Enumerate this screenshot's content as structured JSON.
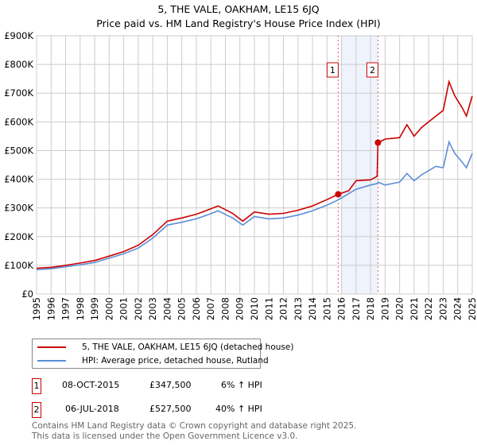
{
  "chart_data": {
    "type": "line",
    "title": "5, THE VALE, OAKHAM, LE15 6JQ",
    "subtitle": "Price paid vs. HM Land Registry's House Price Index (HPI)",
    "xlim": [
      1995,
      2025
    ],
    "ylim": [
      0,
      900000
    ],
    "grid": true,
    "y_ticks": [
      {
        "v": 0,
        "label": "£0"
      },
      {
        "v": 100000,
        "label": "£100K"
      },
      {
        "v": 200000,
        "label": "£200K"
      },
      {
        "v": 300000,
        "label": "£300K"
      },
      {
        "v": 400000,
        "label": "£400K"
      },
      {
        "v": 500000,
        "label": "£500K"
      },
      {
        "v": 600000,
        "label": "£600K"
      },
      {
        "v": 700000,
        "label": "£700K"
      },
      {
        "v": 800000,
        "label": "£800K"
      },
      {
        "v": 900000,
        "label": "£900K"
      }
    ],
    "x_ticks": [
      "1995",
      "1996",
      "1997",
      "1998",
      "1999",
      "2000",
      "2001",
      "2002",
      "2003",
      "2004",
      "2005",
      "2006",
      "2007",
      "2008",
      "2009",
      "2010",
      "2011",
      "2012",
      "2013",
      "2014",
      "2015",
      "2016",
      "2017",
      "2018",
      "2019",
      "2020",
      "2021",
      "2022",
      "2023",
      "2024",
      "2025"
    ],
    "series": [
      {
        "name": "5, THE VALE, OAKHAM, LE15 6JQ (detached house)",
        "color": "#cc0000",
        "x": [
          1995,
          1996,
          1997,
          1998,
          1999,
          2000,
          2001,
          2002,
          2003,
          2004,
          2005,
          2006,
          2007,
          2007.5,
          2008.5,
          2009.2,
          2010,
          2011,
          2012,
          2013,
          2014,
          2015,
          2015.77,
          2016.5,
          2017,
          2018,
          2018.45,
          2018.51,
          2019,
          2020,
          2020.5,
          2021,
          2021.5,
          2022,
          2022.5,
          2023,
          2023.4,
          2023.8,
          2024.3,
          2024.6,
          2025
        ],
        "y": [
          90000,
          93000,
          100000,
          108000,
          117000,
          132000,
          148000,
          170000,
          207000,
          254000,
          265000,
          278000,
          297000,
          307000,
          281000,
          254000,
          286000,
          278000,
          281000,
          292000,
          307000,
          329000,
          347500,
          360000,
          395000,
          398000,
          410000,
          527500,
          540000,
          545000,
          590000,
          550000,
          580000,
          600000,
          620000,
          640000,
          740000,
          690000,
          650000,
          620000,
          690000
        ]
      },
      {
        "name": "HPI: Average price, detached house, Rutland",
        "color": "#5b8fd6",
        "x": [
          1995,
          1996,
          1997,
          1998,
          1999,
          2000,
          2001,
          2002,
          2003,
          2004,
          2005,
          2006,
          2007,
          2007.5,
          2008.5,
          2009.2,
          2010,
          2011,
          2012,
          2013,
          2014,
          2015,
          2015.77,
          2016.5,
          2017,
          2018,
          2018.45,
          2018.51,
          2019,
          2020,
          2020.5,
          2021,
          2021.5,
          2022,
          2022.5,
          2023,
          2023.4,
          2023.8,
          2024.3,
          2024.6,
          2025
        ],
        "y": [
          85000,
          88000,
          95000,
          102000,
          110000,
          125000,
          140000,
          160000,
          195000,
          240000,
          250000,
          262000,
          280000,
          290000,
          265000,
          240000,
          270000,
          262000,
          265000,
          275000,
          290000,
          310000,
          328000,
          350000,
          365000,
          380000,
          385000,
          390000,
          380000,
          390000,
          420000,
          395000,
          415000,
          430000,
          445000,
          440000,
          530000,
          490000,
          460000,
          440000,
          490000
        ]
      }
    ],
    "sales": [
      {
        "label": "1",
        "x": 2015.77,
        "y": 347500
      },
      {
        "label": "2",
        "x": 2018.51,
        "y": 527500
      }
    ],
    "shaded_range": [
      2016,
      2018.51
    ]
  },
  "legend": {
    "items": [
      "5, THE VALE, OAKHAM, LE15 6JQ (detached house)",
      "HPI: Average price, detached house, Rutland"
    ]
  },
  "transactions": [
    {
      "num": "1",
      "date": "08-OCT-2015",
      "price": "£347,500",
      "hpi": "6% ↑ HPI"
    },
    {
      "num": "2",
      "date": "06-JUL-2018",
      "price": "£527,500",
      "hpi": "40% ↑ HPI"
    }
  ],
  "footer": {
    "line1": "Contains HM Land Registry data © Crown copyright and database right 2025.",
    "line2": "This data is licensed under the Open Government Licence v3.0."
  }
}
